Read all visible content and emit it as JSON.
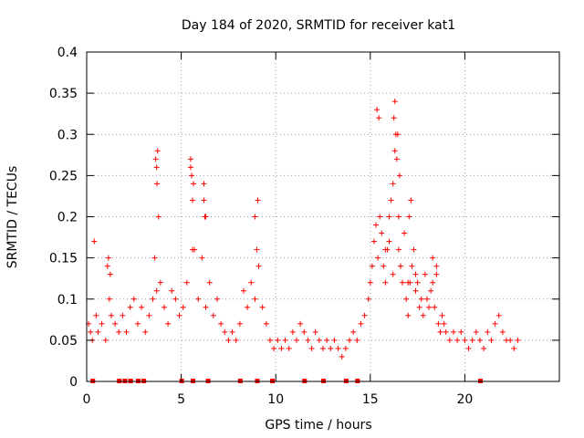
{
  "chart_data": {
    "type": "scatter",
    "title": "Day 184 of 2020, SRMTID for receiver kat1",
    "xlabel": "GPS time / hours",
    "ylabel": "SRMTID / TECUs",
    "xlim": [
      0,
      25
    ],
    "ylim": [
      0,
      0.4
    ],
    "x_ticks": [
      0,
      5,
      10,
      15,
      20
    ],
    "x_tick_labels": [
      "0",
      "5",
      "10",
      "15",
      "20"
    ],
    "y_ticks": [
      0,
      0.05,
      0.1,
      0.15,
      0.2,
      0.25,
      0.3,
      0.35,
      0.4
    ],
    "y_tick_labels": [
      "0",
      "0.05",
      "0.1",
      "0.15",
      "0.2",
      "0.25",
      "0.3",
      "0.35",
      "0.4"
    ],
    "grid": true,
    "marker": "+",
    "color": "#ff0000",
    "series": [
      {
        "name": "SRMTID",
        "x": [
          0.1,
          0.2,
          0.3,
          0.5,
          0.6,
          0.8,
          1.0,
          1.1,
          1.2,
          1.3,
          1.5,
          1.7,
          1.9,
          2.1,
          2.3,
          2.5,
          2.7,
          2.9,
          3.1,
          3.3,
          3.5,
          3.6,
          3.7,
          3.75,
          3.8,
          3.9,
          4.1,
          4.3,
          4.5,
          4.7,
          4.9,
          5.1,
          5.3,
          5.5,
          5.55,
          5.6,
          5.7,
          5.9,
          6.1,
          6.2,
          6.3,
          6.5,
          6.7,
          6.9,
          7.1,
          7.3,
          7.5,
          7.7,
          7.9,
          8.1,
          8.3,
          8.5,
          8.7,
          8.9,
          9.0,
          9.1,
          9.3,
          9.5,
          9.7,
          9.9,
          10.1,
          10.3,
          10.5,
          10.7,
          10.9,
          11.1,
          11.3,
          11.5,
          11.7,
          11.9,
          12.1,
          12.3,
          12.5,
          12.7,
          12.9,
          13.1,
          13.3,
          13.5,
          13.7,
          13.9,
          14.1,
          14.3,
          14.5,
          14.7,
          14.9,
          15.0,
          15.1,
          15.2,
          15.3,
          15.4,
          15.5,
          15.6,
          15.7,
          15.8,
          15.9,
          16.0,
          16.1,
          16.2,
          16.3,
          16.35,
          16.4,
          16.5,
          16.6,
          16.7,
          16.8,
          16.9,
          17.0,
          17.1,
          17.2,
          17.3,
          17.4,
          17.5,
          17.6,
          17.7,
          17.8,
          17.9,
          18.0,
          18.1,
          18.2,
          18.3,
          18.4,
          18.5,
          18.6,
          18.7,
          18.8,
          18.9,
          19.0,
          19.2,
          19.4,
          19.6,
          19.8,
          20.0,
          20.2,
          20.4,
          20.6,
          20.8,
          21.0,
          21.2,
          21.4,
          21.6,
          21.8,
          22.0,
          22.2,
          22.4,
          22.6,
          22.8,
          0.4,
          1.15,
          1.25,
          3.65,
          3.72,
          5.5,
          5.65,
          6.2,
          6.25,
          9.05,
          15.35,
          15.45,
          16.25,
          16.3,
          16.45,
          16.55,
          17.05,
          17.15,
          3.7,
          5.6,
          6.3,
          8.9,
          15.8,
          16.0,
          16.2,
          16.5,
          17.0,
          17.4,
          18.3,
          18.5
        ],
        "y": [
          0.07,
          0.06,
          0.05,
          0.08,
          0.06,
          0.07,
          0.05,
          0.14,
          0.1,
          0.08,
          0.07,
          0.06,
          0.08,
          0.06,
          0.09,
          0.1,
          0.07,
          0.09,
          0.06,
          0.08,
          0.1,
          0.15,
          0.26,
          0.28,
          0.2,
          0.12,
          0.09,
          0.07,
          0.11,
          0.1,
          0.08,
          0.09,
          0.12,
          0.27,
          0.25,
          0.22,
          0.16,
          0.1,
          0.15,
          0.24,
          0.2,
          0.12,
          0.08,
          0.1,
          0.07,
          0.06,
          0.05,
          0.06,
          0.05,
          0.07,
          0.11,
          0.09,
          0.12,
          0.2,
          0.16,
          0.14,
          0.09,
          0.07,
          0.05,
          0.04,
          0.05,
          0.04,
          0.05,
          0.04,
          0.06,
          0.05,
          0.07,
          0.06,
          0.05,
          0.04,
          0.06,
          0.05,
          0.04,
          0.05,
          0.04,
          0.05,
          0.04,
          0.03,
          0.04,
          0.05,
          0.06,
          0.05,
          0.07,
          0.08,
          0.1,
          0.12,
          0.14,
          0.17,
          0.19,
          0.15,
          0.2,
          0.18,
          0.14,
          0.12,
          0.16,
          0.2,
          0.22,
          0.24,
          0.28,
          0.3,
          0.27,
          0.2,
          0.14,
          0.12,
          0.18,
          0.1,
          0.08,
          0.12,
          0.14,
          0.16,
          0.11,
          0.12,
          0.09,
          0.1,
          0.08,
          0.13,
          0.1,
          0.09,
          0.11,
          0.12,
          0.09,
          0.13,
          0.07,
          0.06,
          0.08,
          0.07,
          0.06,
          0.05,
          0.06,
          0.05,
          0.06,
          0.05,
          0.04,
          0.05,
          0.06,
          0.05,
          0.04,
          0.06,
          0.05,
          0.07,
          0.08,
          0.06,
          0.05,
          0.05,
          0.04,
          0.05,
          0.17,
          0.15,
          0.13,
          0.27,
          0.24,
          0.26,
          0.24,
          0.22,
          0.2,
          0.22,
          0.33,
          0.32,
          0.32,
          0.34,
          0.3,
          0.25,
          0.2,
          0.22,
          0.11,
          0.16,
          0.09,
          0.1,
          0.16,
          0.17,
          0.13,
          0.16,
          0.12,
          0.13,
          0.15,
          0.14
        ],
        "y_zero_marks_x": [
          0.3,
          1.7,
          2.0,
          2.3,
          2.7,
          3.0,
          5.0,
          5.6,
          6.4,
          8.1,
          9.0,
          9.8,
          11.5,
          12.5,
          13.7,
          14.3,
          20.8
        ]
      }
    ]
  }
}
